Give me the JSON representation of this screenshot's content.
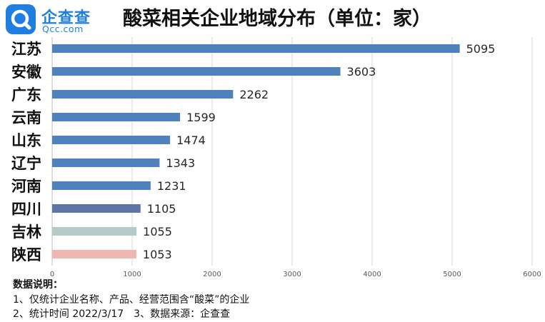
{
  "logo": {
    "icon": "qcc-search-logo-icon",
    "name": "企查查",
    "domain": "Qcc.com",
    "color": "#1f7fe0"
  },
  "notes": {
    "title": "数据说明：",
    "line1": "1、仅统计企业名称、产品、经营范围含“酸菜”的企业",
    "line2_part1": "2、统计时间 2022/3/17",
    "line2_part2": "3、数据来源：企查查"
  },
  "chart_data": {
    "type": "bar",
    "orientation": "horizontal",
    "title": "酸菜相关企业地域分布（单位：家）",
    "categories": [
      "江苏",
      "安徽",
      "广东",
      "云南",
      "山东",
      "辽宁",
      "河南",
      "四川",
      "吉林",
      "陕西"
    ],
    "values": [
      5095,
      3603,
      2262,
      1599,
      1474,
      1343,
      1231,
      1105,
      1055,
      1053
    ],
    "bar_colors": [
      "#4f81bd",
      "#4f81bd",
      "#4f81bd",
      "#4f81bd",
      "#4f81bd",
      "#4f81bd",
      "#4f81bd",
      "#5e76a5",
      "#b4cbc9",
      "#f0b7b2"
    ],
    "xlim": [
      0,
      6000
    ],
    "xticks": [
      0,
      1000,
      2000,
      3000,
      4000,
      5000,
      6000
    ],
    "grid": true,
    "data_labels": true,
    "legend": "none"
  }
}
